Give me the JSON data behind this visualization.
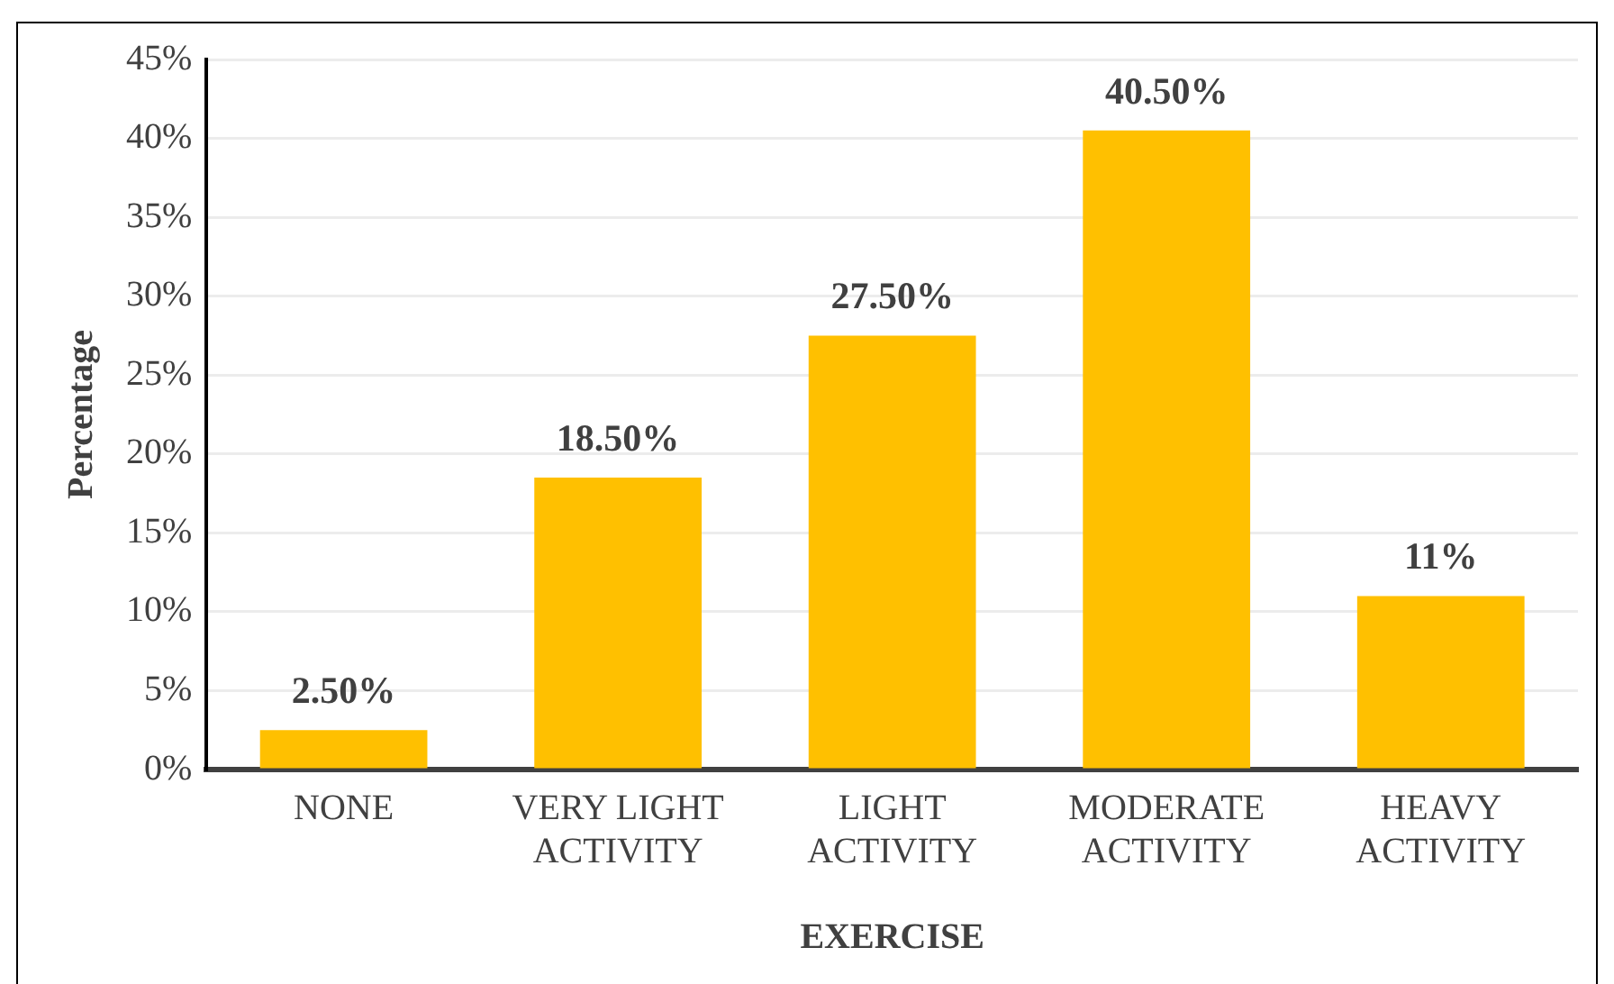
{
  "chart_data": {
    "type": "bar",
    "xlabel": "EXERCISE",
    "ylabel": "Percentage",
    "categories": [
      "NONE",
      "VERY LIGHT ACTIVITY",
      "LIGHT ACTIVITY",
      "MODERATE ACTIVITY",
      "HEAVY ACTIVITY"
    ],
    "values": [
      2.5,
      18.5,
      27.5,
      40.5,
      11
    ],
    "value_labels": [
      "2.50%",
      "18.50%",
      "27.50%",
      "40.50%",
      "11%"
    ],
    "color": "#ffc000",
    "ylim": [
      0,
      45
    ],
    "yticks": [
      {
        "value": 0,
        "label": "0%"
      },
      {
        "value": 5,
        "label": "5%"
      },
      {
        "value": 10,
        "label": "10%"
      },
      {
        "value": 15,
        "label": "15%"
      },
      {
        "value": 20,
        "label": "20%"
      },
      {
        "value": 25,
        "label": "25%"
      },
      {
        "value": 30,
        "label": "30%"
      },
      {
        "value": 35,
        "label": "35%"
      },
      {
        "value": 40,
        "label": "40%"
      },
      {
        "value": 45,
        "label": "45%"
      }
    ],
    "grid": "y",
    "legend": false
  }
}
